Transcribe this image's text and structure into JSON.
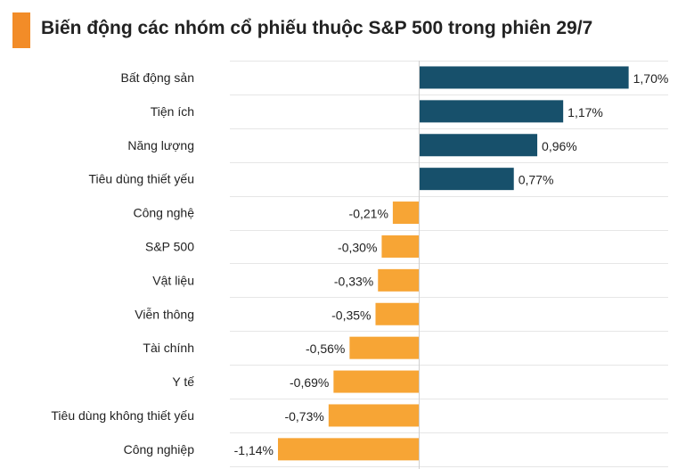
{
  "title": "Biến động các nhóm cổ phiếu thuộc S&P 500 trong phiên 29/7",
  "colors": {
    "positive": "#17506b",
    "negative": "#f7a535",
    "accent": "#f28c28",
    "grid": "#e6e6e6",
    "axis": "#cfcfcf"
  },
  "chart_data": {
    "type": "bar",
    "orientation": "horizontal",
    "title": "Biến động các nhóm cổ phiếu thuộc S&P 500 trong phiên 29/7",
    "categories": [
      "Bất động sản",
      "Tiện ích",
      "Năng lượng",
      "Tiêu dùng thiết yếu",
      "Công nghệ",
      "S&P 500",
      "Vật liệu",
      "Viễn thông",
      "Tài chính",
      "Y tế",
      "Tiêu dùng không thiết yếu",
      "Công nghiệp"
    ],
    "values": [
      1.7,
      1.17,
      0.96,
      0.77,
      -0.21,
      -0.3,
      -0.33,
      -0.35,
      -0.56,
      -0.69,
      -0.73,
      -1.14
    ],
    "value_labels": [
      "1,70%",
      "1,17%",
      "0,96%",
      "0,77%",
      "-0,21%",
      "-0,30%",
      "-0,33%",
      "-0,35%",
      "-0,56%",
      "-0,69%",
      "-0,73%",
      "-1,14%"
    ],
    "xlim": [
      -1.5,
      1.7
    ],
    "grid": true,
    "xlabel": "",
    "ylabel": ""
  }
}
